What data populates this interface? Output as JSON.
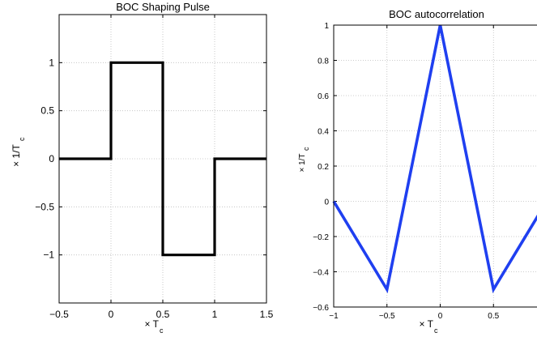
{
  "chart_data": [
    {
      "type": "line",
      "title": "BOC Shaping Pulse",
      "xlabel": "× T",
      "xlabel_sub": "c",
      "ylabel": "× 1/T",
      "ylabel_sub": "c",
      "xlim": [
        -0.5,
        1.5
      ],
      "ylim": [
        -1.5,
        1.5
      ],
      "xticks": [
        -0.5,
        0,
        0.5,
        1,
        1.5
      ],
      "xtick_labels": [
        "−0.5",
        "0",
        "0.5",
        "1",
        "1.5"
      ],
      "yticks": [
        -1,
        -0.5,
        0,
        0.5,
        1
      ],
      "ytick_labels": [
        "−1",
        "−0.5",
        "0",
        "0.5",
        "1"
      ],
      "grid": true,
      "color": "#000000",
      "series": [
        {
          "x": [
            -0.5,
            0,
            0,
            0.5,
            0.5,
            1,
            1,
            1.5
          ],
          "y": [
            0,
            0,
            1,
            1,
            -1,
            -1,
            0,
            0
          ]
        }
      ]
    },
    {
      "type": "line",
      "title": "BOC autocorrelation",
      "xlabel": "× T",
      "xlabel_sub": "c",
      "ylabel": "× 1/T",
      "ylabel_sub": "c",
      "xlim": [
        -1,
        1
      ],
      "ylim": [
        -0.6,
        1
      ],
      "xticks": [
        -1,
        -0.5,
        0,
        0.5
      ],
      "xtick_labels": [
        "−1",
        "−0.5",
        "0",
        "0.5"
      ],
      "yticks": [
        -0.6,
        -0.4,
        -0.2,
        0,
        0.2,
        0.4,
        0.6,
        0.8,
        1
      ],
      "ytick_labels": [
        "−0.6",
        "−0.4",
        "−0.2",
        "0",
        "0.2",
        "0.4",
        "0.6",
        "0.8",
        "1"
      ],
      "grid": true,
      "color": "#1f3ff0",
      "series": [
        {
          "x": [
            -1,
            -0.5,
            0,
            0.5,
            1
          ],
          "y": [
            0,
            -0.5,
            1,
            -0.5,
            0
          ]
        }
      ]
    }
  ]
}
